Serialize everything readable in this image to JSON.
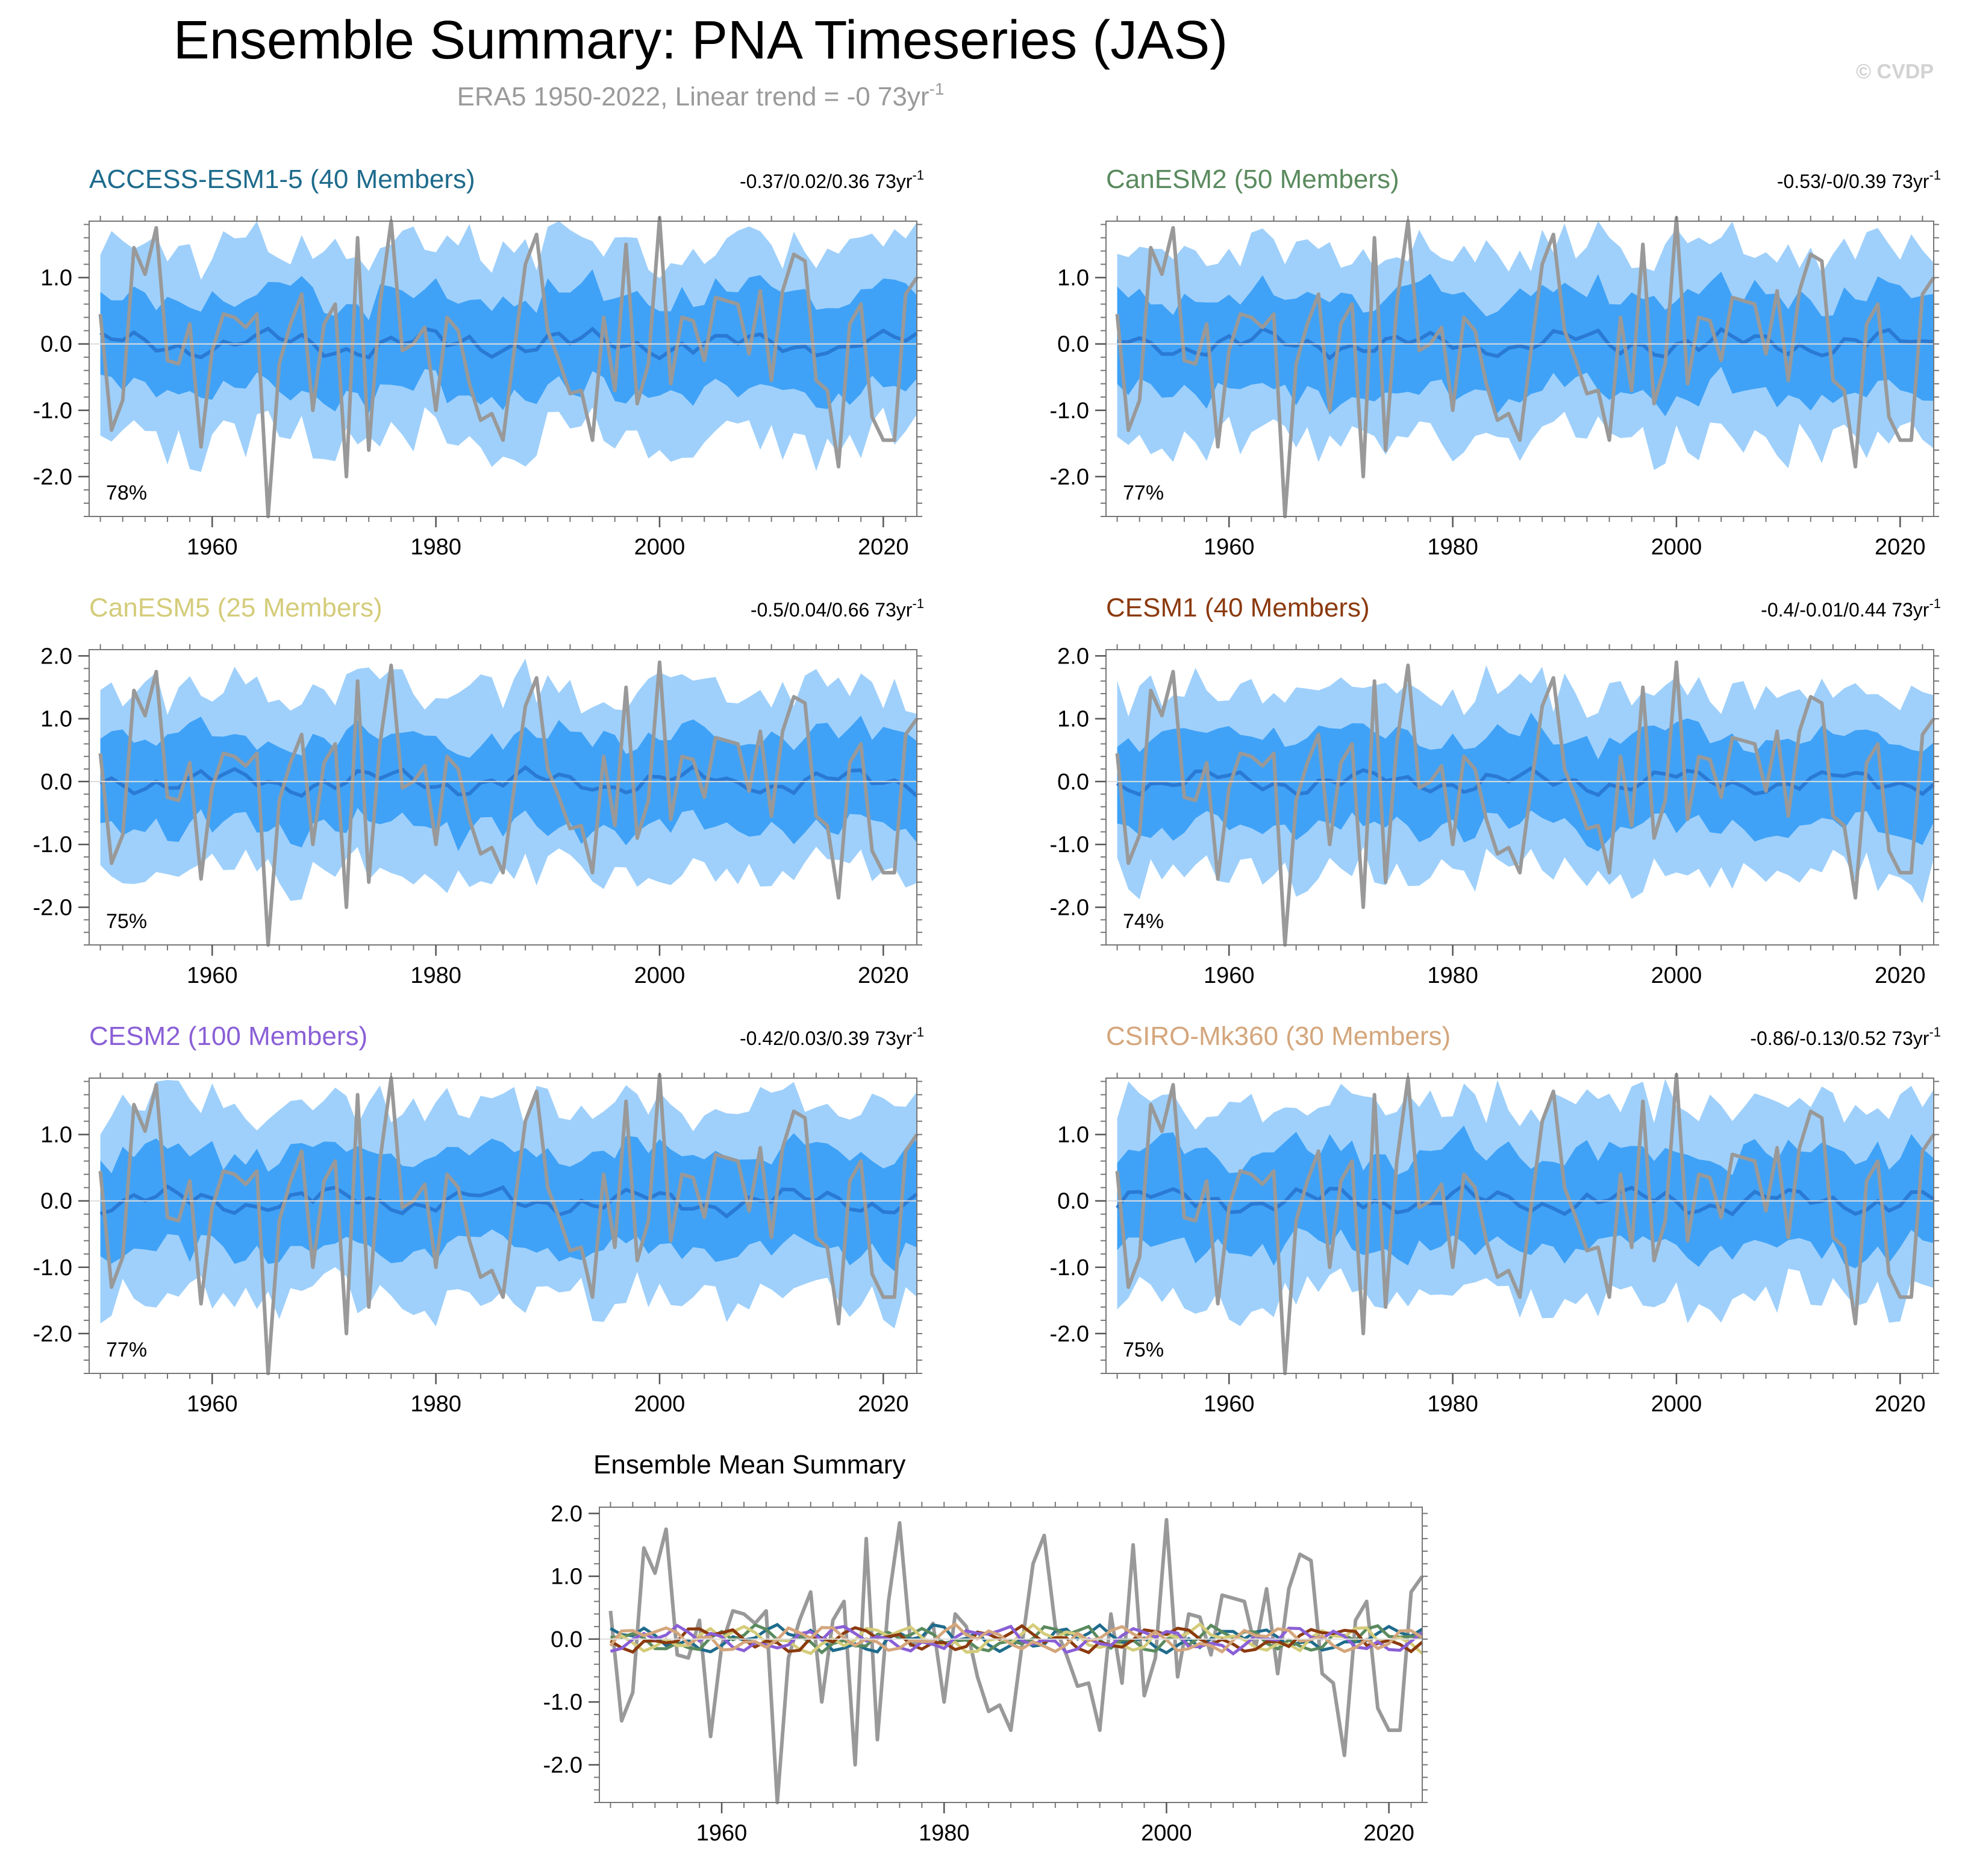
{
  "title": "Ensemble Summary: PNA Timeseries (JAS)",
  "subtitle": "ERA5 1950-2022, Linear trend = -0 73yr",
  "subtitle_sup": "-1",
  "copyright": "© CVDP",
  "colors": {
    "band_outer": "#9fd0fb",
    "band_inner": "#3fa2f7",
    "ensemble_mean": "#2a7ad4",
    "observations": "#999999"
  },
  "chart_data": {
    "type": "line",
    "x_start": 1950,
    "x_end": 2022,
    "xticks": [
      1960,
      1980,
      2000,
      2020
    ],
    "observations": {
      "name": "ERA5",
      "values": [
        0.45,
        -1.3,
        -0.85,
        1.45,
        1.05,
        1.75,
        -0.25,
        -0.3,
        0.3,
        -1.55,
        -0.1,
        0.45,
        0.4,
        0.25,
        0.45,
        -2.6,
        -0.3,
        0.3,
        0.75,
        -1.0,
        0.3,
        0.6,
        -2.0,
        1.6,
        -1.6,
        0.6,
        1.85,
        -0.1,
        0.0,
        0.25,
        -1.0,
        0.4,
        0.2,
        -0.6,
        -1.15,
        -1.05,
        -1.45,
        -0.1,
        1.2,
        1.65,
        0.2,
        -0.25,
        -0.75,
        -0.7,
        -1.45,
        0.4,
        -0.7,
        1.5,
        -0.9,
        -0.3,
        1.9,
        -0.6,
        0.4,
        0.35,
        -0.25,
        0.7,
        0.65,
        0.6,
        -0.15,
        0.8,
        -0.55,
        0.8,
        1.35,
        1.25,
        -0.55,
        -0.7,
        -1.85,
        0.3,
        0.6,
        -1.1,
        -1.45,
        -1.45,
        0.75,
        1.0
      ]
    },
    "panels": [
      {
        "name": "ACCESS-ESM1-5 (40 Members)",
        "color": "#1e6b8c",
        "trend": "-0.37/0.02/0.36 73yr",
        "trend_sup": "-1",
        "percent": "78%",
        "yrange": [
          -2.6,
          1.85
        ],
        "yticks": [
          "1.0",
          "0.0",
          "-1.0",
          "-2.0"
        ],
        "ytick_values": [
          1.0,
          0.0,
          -1.0,
          -2.0
        ]
      },
      {
        "name": "CanESM2 (50 Members)",
        "color": "#5a8a5e",
        "trend": "-0.53/-0/0.39 73yr",
        "trend_sup": "-1",
        "percent": "77%",
        "yrange": [
          -2.6,
          1.85
        ],
        "yticks": [
          "1.0",
          "0.0",
          "-1.0",
          "-2.0"
        ],
        "ytick_values": [
          1.0,
          0.0,
          -1.0,
          -2.0
        ]
      },
      {
        "name": "CanESM5 (25 Members)",
        "color": "#d4cc7a",
        "trend": "-0.5/0.04/0.66 73yr",
        "trend_sup": "-1",
        "percent": "75%",
        "yrange": [
          -2.6,
          2.1
        ],
        "yticks": [
          "2.0",
          "1.0",
          "0.0",
          "-1.0",
          "-2.0"
        ],
        "ytick_values": [
          2.0,
          1.0,
          0.0,
          -1.0,
          -2.0
        ]
      },
      {
        "name": "CESM1 (40 Members)",
        "color": "#8b3a0e",
        "trend": "-0.4/-0.01/0.44 73yr",
        "trend_sup": "-1",
        "percent": "74%",
        "yrange": [
          -2.6,
          2.1
        ],
        "yticks": [
          "2.0",
          "1.0",
          "0.0",
          "-1.0",
          "-2.0"
        ],
        "ytick_values": [
          2.0,
          1.0,
          0.0,
          -1.0,
          -2.0
        ]
      },
      {
        "name": "CESM2 (100 Members)",
        "color": "#8a5fd6",
        "trend": "-0.42/0.03/0.39 73yr",
        "trend_sup": "-1",
        "percent": "77%",
        "yrange": [
          -2.6,
          1.85
        ],
        "yticks": [
          "1.0",
          "0.0",
          "-1.0",
          "-2.0"
        ],
        "ytick_values": [
          1.0,
          0.0,
          -1.0,
          -2.0
        ]
      },
      {
        "name": "CSIRO-Mk360 (30 Members)",
        "color": "#d4a67c",
        "trend": "-0.86/-0.13/0.52 73yr",
        "trend_sup": "-1",
        "percent": "75%",
        "yrange": [
          -2.6,
          1.85
        ],
        "yticks": [
          "1.0",
          "0.0",
          "-1.0",
          "-2.0"
        ],
        "ytick_values": [
          1.0,
          0.0,
          -1.0,
          -2.0
        ]
      }
    ],
    "summary": {
      "title": "Ensemble Mean Summary",
      "yrange": [
        -2.6,
        2.1
      ],
      "yticks": [
        "2.0",
        "1.0",
        "0.0",
        "-1.0",
        "-2.0"
      ],
      "ytick_values": [
        2.0,
        1.0,
        0.0,
        -1.0,
        -2.0
      ]
    }
  }
}
